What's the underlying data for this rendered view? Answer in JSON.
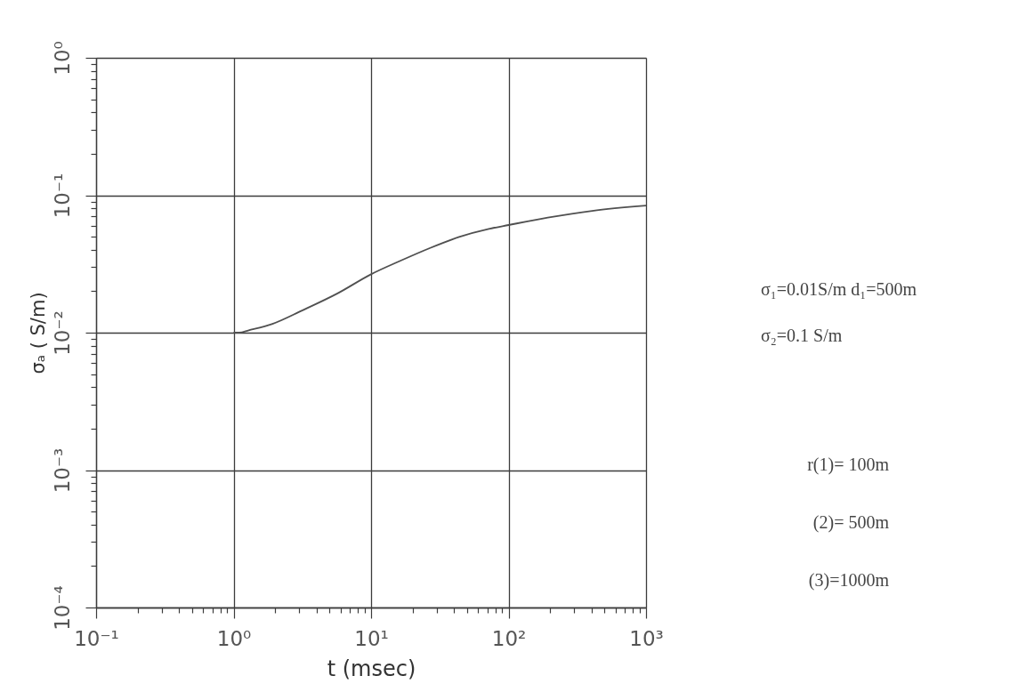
{
  "chart_data": {
    "type": "line",
    "xlabel": "t (msec)",
    "ylabel": "σₐ ( S/m)",
    "log": "xy",
    "grid": true,
    "xlim": [
      0.1,
      1000
    ],
    "ylim": [
      0.0001,
      1
    ],
    "xticks": [
      {
        "value": 0.1,
        "label": "10⁻¹"
      },
      {
        "value": 0.2,
        "label": null
      },
      {
        "value": 0.3,
        "label": null
      },
      {
        "value": 0.4,
        "label": null
      },
      {
        "value": 0.5,
        "label": null
      },
      {
        "value": 0.6,
        "label": null
      },
      {
        "value": 0.7,
        "label": null
      },
      {
        "value": 0.8,
        "label": null
      },
      {
        "value": 0.9,
        "label": null
      },
      {
        "value": 1,
        "label": "10⁰"
      },
      {
        "value": 2,
        "label": null
      },
      {
        "value": 3,
        "label": null
      },
      {
        "value": 4,
        "label": null
      },
      {
        "value": 5,
        "label": null
      },
      {
        "value": 6,
        "label": null
      },
      {
        "value": 7,
        "label": null
      },
      {
        "value": 8,
        "label": null
      },
      {
        "value": 9,
        "label": null
      },
      {
        "value": 10,
        "label": "10¹"
      },
      {
        "value": 20,
        "label": null
      },
      {
        "value": 30,
        "label": null
      },
      {
        "value": 40,
        "label": null
      },
      {
        "value": 50,
        "label": null
      },
      {
        "value": 60,
        "label": null
      },
      {
        "value": 70,
        "label": null
      },
      {
        "value": 80,
        "label": null
      },
      {
        "value": 90,
        "label": null
      },
      {
        "value": 100,
        "label": "10²"
      },
      {
        "value": 200,
        "label": null
      },
      {
        "value": 300,
        "label": null
      },
      {
        "value": 400,
        "label": null
      },
      {
        "value": 500,
        "label": null
      },
      {
        "value": 600,
        "label": null
      },
      {
        "value": 700,
        "label": null
      },
      {
        "value": 800,
        "label": null
      },
      {
        "value": 900,
        "label": null
      },
      {
        "value": 1000,
        "label": "10³"
      }
    ],
    "yticks": [
      {
        "value": 0.0001,
        "label": "10⁻⁴"
      },
      {
        "value": 0.0002,
        "label": null
      },
      {
        "value": 0.0003,
        "label": null
      },
      {
        "value": 0.0004,
        "label": null
      },
      {
        "value": 0.0005,
        "label": null
      },
      {
        "value": 0.0006,
        "label": null
      },
      {
        "value": 0.0007,
        "label": null
      },
      {
        "value": 0.0008,
        "label": null
      },
      {
        "value": 0.0009,
        "label": null
      },
      {
        "value": 0.001,
        "label": "10⁻³"
      },
      {
        "value": 0.002,
        "label": null
      },
      {
        "value": 0.003,
        "label": null
      },
      {
        "value": 0.004,
        "label": null
      },
      {
        "value": 0.005,
        "label": null
      },
      {
        "value": 0.006,
        "label": null
      },
      {
        "value": 0.007,
        "label": null
      },
      {
        "value": 0.008,
        "label": null
      },
      {
        "value": 0.009,
        "label": null
      },
      {
        "value": 0.01,
        "label": "10⁻²"
      },
      {
        "value": 0.02,
        "label": null
      },
      {
        "value": 0.03,
        "label": null
      },
      {
        "value": 0.04,
        "label": null
      },
      {
        "value": 0.05,
        "label": null
      },
      {
        "value": 0.06,
        "label": null
      },
      {
        "value": 0.07,
        "label": null
      },
      {
        "value": 0.08,
        "label": null
      },
      {
        "value": 0.09,
        "label": null
      },
      {
        "value": 0.1,
        "label": "10⁻¹"
      },
      {
        "value": 0.2,
        "label": null
      },
      {
        "value": 0.3,
        "label": null
      },
      {
        "value": 0.4,
        "label": null
      },
      {
        "value": 0.5,
        "label": null
      },
      {
        "value": 0.6,
        "label": null
      },
      {
        "value": 0.7,
        "label": null
      },
      {
        "value": 0.8,
        "label": null
      },
      {
        "value": 0.9,
        "label": null
      },
      {
        "value": 1,
        "label": "10⁰"
      }
    ],
    "x": [
      1,
      1.1,
      1.29,
      1.92,
      3.15,
      5.7,
      10,
      16.3,
      26.7,
      43.7,
      71.8,
      100,
      193,
      406,
      1000
    ],
    "series": [
      {
        "color": "#505050",
        "values": [
          0.01,
          0.01,
          0.0104,
          0.0116,
          0.0145,
          0.0193,
          0.0266,
          0.0333,
          0.0412,
          0.0497,
          0.0569,
          0.0607,
          0.0687,
          0.077,
          0.084
        ]
      }
    ],
    "annotations": [
      "σ₁=0.01S/m d₁=500m",
      "σ₂=0.1 S/m",
      "r(1)= 100m",
      "(2)= 500m",
      "(3)=1000m"
    ]
  }
}
